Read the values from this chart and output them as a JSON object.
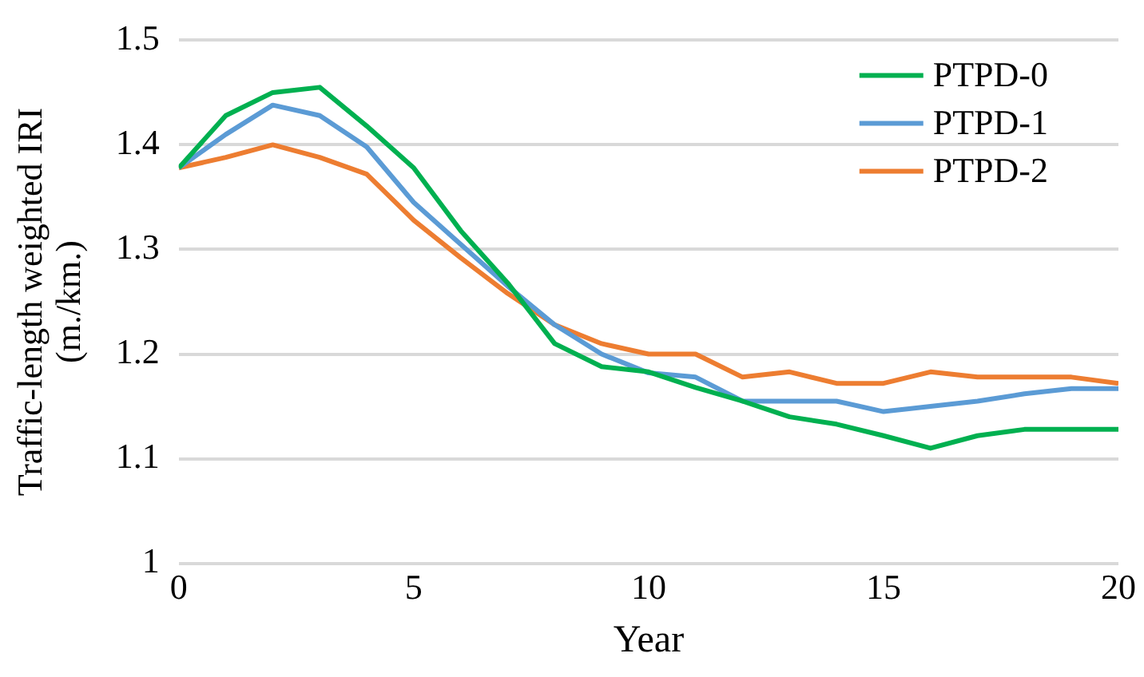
{
  "chart_data": {
    "type": "line",
    "xlabel": "Year",
    "ylabel": "Traffic-length weighted IRI\n(m./km.)",
    "x": [
      0,
      1,
      2,
      3,
      4,
      5,
      6,
      7,
      8,
      9,
      10,
      11,
      12,
      13,
      14,
      15,
      16,
      17,
      18,
      19,
      20
    ],
    "series": [
      {
        "name": "PTPD-0",
        "color": "#00b050",
        "values": [
          1.378,
          1.428,
          1.45,
          1.455,
          1.418,
          1.378,
          1.318,
          1.268,
          1.21,
          1.188,
          1.183,
          1.168,
          1.155,
          1.14,
          1.133,
          1.122,
          1.11,
          1.122,
          1.128,
          1.128,
          1.128
        ]
      },
      {
        "name": "PTPD-1",
        "color": "#5b9bd5",
        "values": [
          1.378,
          1.41,
          1.438,
          1.428,
          1.398,
          1.345,
          1.305,
          1.265,
          1.228,
          1.2,
          1.182,
          1.178,
          1.155,
          1.155,
          1.155,
          1.145,
          1.15,
          1.155,
          1.162,
          1.167,
          1.167
        ]
      },
      {
        "name": "PTPD-2",
        "color": "#ed7d31",
        "values": [
          1.378,
          1.388,
          1.4,
          1.388,
          1.372,
          1.328,
          1.292,
          1.258,
          1.228,
          1.21,
          1.2,
          1.2,
          1.178,
          1.183,
          1.172,
          1.172,
          1.183,
          1.178,
          1.178,
          1.178,
          1.172
        ]
      }
    ],
    "xlim": [
      0,
      20
    ],
    "xticks": [
      0,
      5,
      10,
      15,
      20
    ],
    "ylim": [
      1,
      1.5
    ],
    "yticks": [
      1,
      1.1,
      1.2,
      1.3,
      1.4,
      1.5
    ],
    "grid": "y",
    "legend": "top right",
    "marker": "none",
    "line_style": "solid"
  }
}
